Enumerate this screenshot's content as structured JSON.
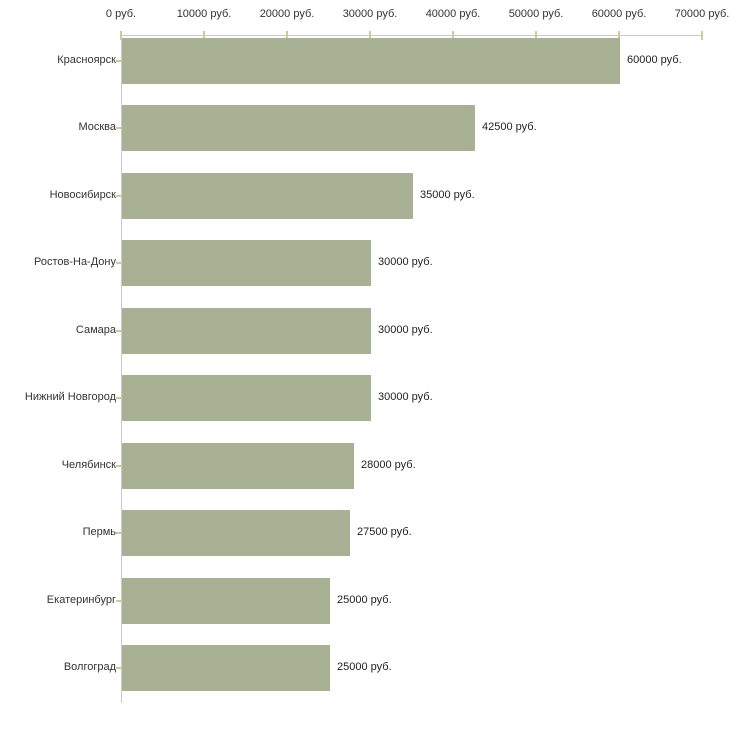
{
  "chart_data": {
    "type": "bar",
    "orientation": "horizontal",
    "title": "",
    "unit": "руб.",
    "categories": [
      "Красноярск",
      "Москва",
      "Новосибирск",
      "Ростов-На-Дону",
      "Самара",
      "Нижний Новгород",
      "Челябинск",
      "Пермь",
      "Екатеринбург",
      "Волгоград"
    ],
    "values": [
      60000,
      42500,
      35000,
      30000,
      30000,
      30000,
      28000,
      27500,
      25000,
      25000
    ],
    "value_labels": [
      "60000 руб.",
      "42500 руб.",
      "35000 руб.",
      "30000 руб.",
      "30000 руб.",
      "30000 руб.",
      "28000 руб.",
      "27500 руб.",
      "25000 руб.",
      "25000 руб."
    ],
    "x_axis": {
      "position": "top",
      "xlim": [
        0,
        70000
      ],
      "ticks": [
        0,
        10000,
        20000,
        30000,
        40000,
        50000,
        60000,
        70000
      ],
      "tick_labels": [
        "0 руб.",
        "10000 руб.",
        "20000 руб.",
        "30000 руб.",
        "40000 руб.",
        "50000 руб.",
        "60000 руб.",
        "70000 руб."
      ]
    },
    "grid": false,
    "legend": "none",
    "colors": {
      "bar": "#a9b194",
      "axis_line": "#c9c9c9",
      "tick_mark": "#cbcb9e",
      "text": "#333333",
      "background": "#ffffff"
    }
  }
}
